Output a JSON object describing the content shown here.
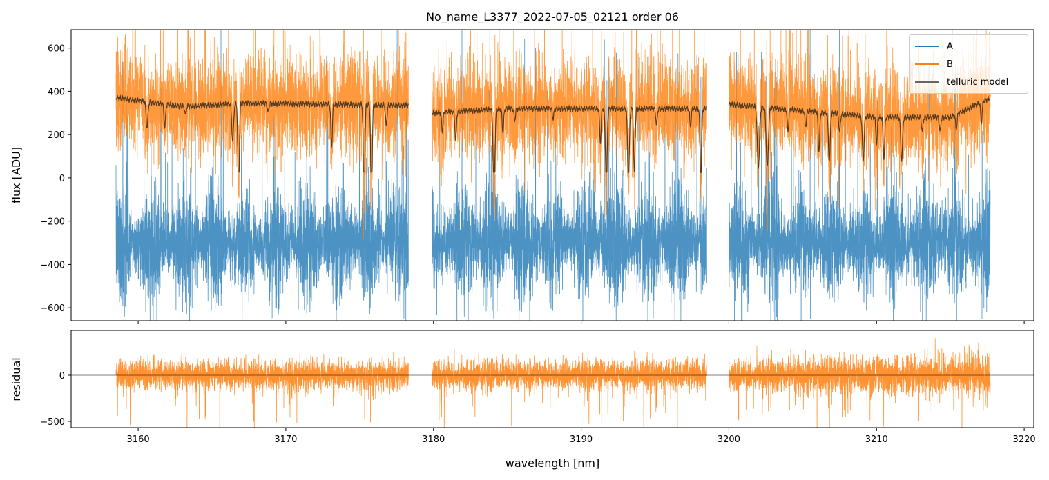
{
  "chart_data": {
    "type": "line",
    "title": "No_name_L3377_2022-07-05_02121  order 06",
    "xlabel": "wavelength [nm]",
    "xlim": [
      3155.46,
      3220.65
    ],
    "xticks": [
      3160,
      3170,
      3180,
      3190,
      3200,
      3210,
      3220
    ],
    "panels": [
      {
        "name": "spectrum",
        "ylabel": "flux [ADU]",
        "ylim": [
          -660,
          685
        ],
        "yticks": [
          -600,
          -400,
          -200,
          0,
          200,
          400,
          600
        ],
        "legend": {
          "position": "top-right",
          "entries": [
            "A",
            "B",
            "telluric model"
          ]
        }
      },
      {
        "name": "residual",
        "ylabel": "residual",
        "ylim": [
          -567,
          485
        ],
        "yticks": [
          -500,
          0
        ],
        "zero_line": true
      }
    ],
    "segments": [
      [
        3158.5,
        3178.3
      ],
      [
        3179.9,
        3198.5
      ],
      [
        3200.0,
        3217.7
      ]
    ],
    "series": [
      {
        "name": "A",
        "color": "#1f77b4",
        "mean": -300,
        "noise_sigma": 110
      },
      {
        "name": "B",
        "color": "#ff7f0e",
        "mean_follows": "telluric model",
        "noise_sigma": 110
      },
      {
        "name": "telluric model",
        "color": "#3a2a1a",
        "continuum": [
          [
            3158.5,
            370
          ],
          [
            3163,
            330
          ],
          [
            3167.5,
            345
          ],
          [
            3178.3,
            335
          ],
          [
            3179.9,
            300
          ],
          [
            3185,
            320
          ],
          [
            3190,
            320
          ],
          [
            3198.5,
            320
          ],
          [
            3200.0,
            340
          ],
          [
            3205,
            310
          ],
          [
            3210,
            280
          ],
          [
            3215,
            280
          ],
          [
            3217.7,
            370
          ]
        ],
        "lines_center_depth_width": [
          [
            3160.6,
            120,
            0.12
          ],
          [
            3161.8,
            110,
            0.1
          ],
          [
            3163.2,
            40,
            0.1
          ],
          [
            3166.4,
            180,
            0.12
          ],
          [
            3166.8,
            440,
            0.1
          ],
          [
            3168.8,
            40,
            0.1
          ],
          [
            3173.1,
            200,
            0.1
          ],
          [
            3175.3,
            500,
            0.1
          ],
          [
            3175.8,
            480,
            0.1
          ],
          [
            3176.8,
            100,
            0.1
          ],
          [
            3180.6,
            100,
            0.1
          ],
          [
            3181.5,
            150,
            0.1
          ],
          [
            3184.1,
            440,
            0.12
          ],
          [
            3184.7,
            120,
            0.1
          ],
          [
            3185.5,
            60,
            0.1
          ],
          [
            3188.1,
            50,
            0.1
          ],
          [
            3191.3,
            170,
            0.1
          ],
          [
            3191.7,
            370,
            0.12
          ],
          [
            3193.2,
            360,
            0.12
          ],
          [
            3193.6,
            320,
            0.1
          ],
          [
            3195.1,
            80,
            0.1
          ],
          [
            3197.4,
            90,
            0.1
          ],
          [
            3198.1,
            370,
            0.1
          ],
          [
            3202.0,
            300,
            0.15
          ],
          [
            3202.6,
            290,
            0.15
          ],
          [
            3204.0,
            110,
            0.1
          ],
          [
            3205.2,
            80,
            0.1
          ],
          [
            3206.1,
            210,
            0.1
          ],
          [
            3206.8,
            260,
            0.12
          ],
          [
            3207.5,
            100,
            0.1
          ],
          [
            3209.1,
            250,
            0.12
          ],
          [
            3210.0,
            150,
            0.1
          ],
          [
            3210.5,
            240,
            0.1
          ],
          [
            3211.7,
            250,
            0.12
          ],
          [
            3213.1,
            80,
            0.1
          ],
          [
            3214.3,
            80,
            0.1
          ],
          [
            3215.4,
            80,
            0.1
          ],
          [
            3217.1,
            90,
            0.1
          ]
        ]
      },
      {
        "name": "residual",
        "color": "#ff7f0e",
        "mean": 0,
        "noise_sigma": 80
      }
    ]
  }
}
